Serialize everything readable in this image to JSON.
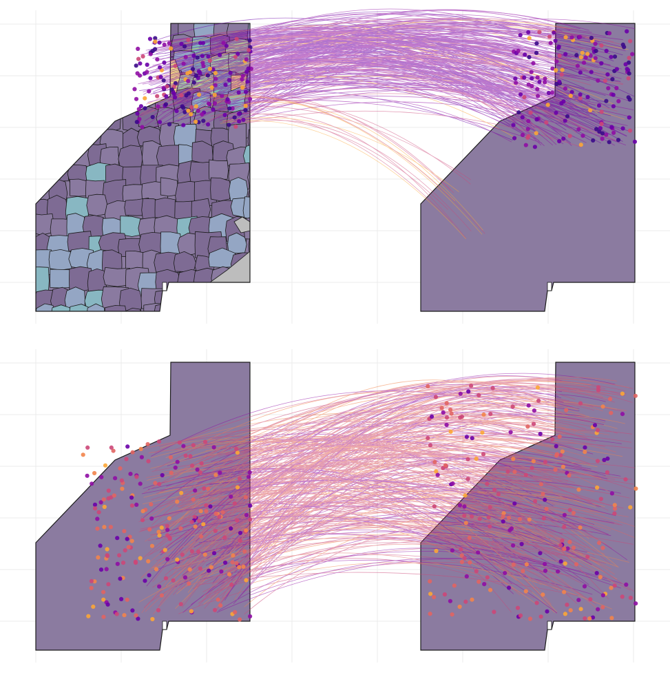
{
  "panels": [
    {
      "id": "top",
      "flow_band": "north",
      "point_color_bias": "purple"
    },
    {
      "id": "bottom",
      "flow_band": "central",
      "point_color_bias": "orange"
    }
  ],
  "colors": {
    "background": "#ffffff",
    "grid": "#ebebeb",
    "boundary": "#1a1a1a",
    "fill_palette": [
      "#7e6b94",
      "#8a7aa0",
      "#94a6c4",
      "#88b7c2",
      "#7fc4b8",
      "#a9dca4",
      "#f4ec82",
      "#bdbdbd"
    ],
    "point_palette": [
      "#3b0a8a",
      "#6a00a8",
      "#8f0da4",
      "#b12a90",
      "#cc4778",
      "#e16462",
      "#f2844b",
      "#fca636",
      "#f0d93a"
    ]
  },
  "line_counts": {
    "top": 260,
    "bottom": 320
  },
  "point_counts": {
    "top": 320,
    "bottom": 430
  }
}
